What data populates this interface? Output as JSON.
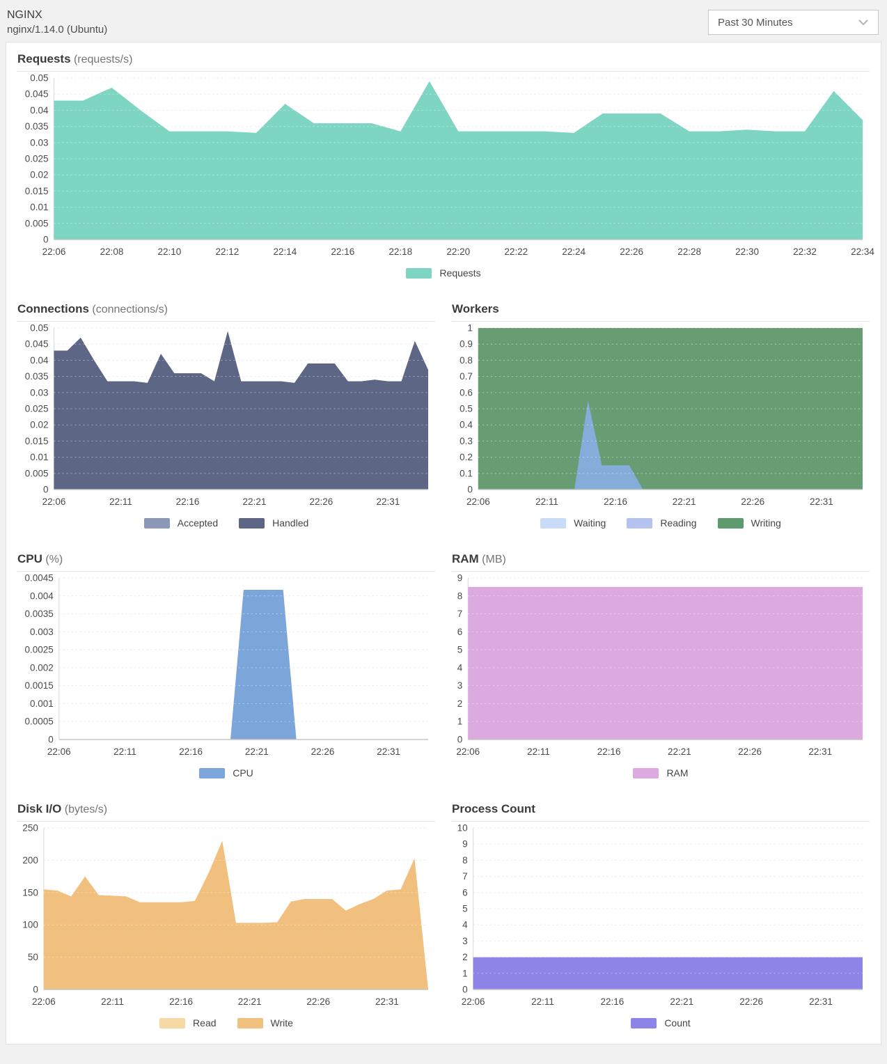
{
  "header": {
    "title": "NGINX",
    "subtitle": "nginx/1.14.0 (Ubuntu)",
    "time_range_selected": "Past 30 Minutes"
  },
  "chart_data": [
    {
      "id": "requests",
      "type": "area",
      "title": "Requests",
      "unit": "(requests/s)",
      "width": "full",
      "ymax": 0.05,
      "ytick_labels": [
        "0",
        "0.005",
        "0.01",
        "0.015",
        "0.02",
        "0.025",
        "0.03",
        "0.035",
        "0.04",
        "0.045",
        "0.05"
      ],
      "x_span_minutes": 28,
      "x_start": "22:06",
      "xticks": [
        {
          "label": "22:06",
          "min": 0
        },
        {
          "label": "22:08",
          "min": 2
        },
        {
          "label": "22:10",
          "min": 4
        },
        {
          "label": "22:12",
          "min": 6
        },
        {
          "label": "22:14",
          "min": 8
        },
        {
          "label": "22:16",
          "min": 10
        },
        {
          "label": "22:18",
          "min": 12
        },
        {
          "label": "22:20",
          "min": 14
        },
        {
          "label": "22:22",
          "min": 16
        },
        {
          "label": "22:24",
          "min": 18
        },
        {
          "label": "22:26",
          "min": 20
        },
        {
          "label": "22:28",
          "min": 22
        },
        {
          "label": "22:30",
          "min": 24
        },
        {
          "label": "22:32",
          "min": 26
        },
        {
          "label": "22:34",
          "min": 28
        }
      ],
      "series": [
        {
          "name": "Requests",
          "color": "#7ed5c2",
          "values": [
            0.043,
            0.043,
            0.047,
            0.04,
            0.0335,
            0.0335,
            0.0335,
            0.033,
            0.042,
            0.036,
            0.036,
            0.036,
            0.0335,
            0.049,
            0.0335,
            0.0335,
            0.0335,
            0.0335,
            0.033,
            0.039,
            0.039,
            0.039,
            0.0335,
            0.0335,
            0.034,
            0.0335,
            0.0335,
            0.046,
            0.037
          ]
        }
      ],
      "legend": [
        {
          "label": "Requests",
          "color": "#7ed5c2"
        }
      ]
    },
    {
      "id": "connections",
      "type": "area",
      "title": "Connections",
      "unit": "(connections/s)",
      "width": "half",
      "ymax": 0.05,
      "ytick_labels": [
        "0",
        "0.005",
        "0.01",
        "0.015",
        "0.02",
        "0.025",
        "0.03",
        "0.035",
        "0.04",
        "0.045",
        "0.05"
      ],
      "x_span_minutes": 28,
      "x_start": "22:06",
      "xticks": [
        {
          "label": "22:06",
          "min": 0
        },
        {
          "label": "22:11",
          "min": 5
        },
        {
          "label": "22:16",
          "min": 10
        },
        {
          "label": "22:21",
          "min": 15
        },
        {
          "label": "22:26",
          "min": 20
        },
        {
          "label": "22:31",
          "min": 25
        }
      ],
      "series": [
        {
          "name": "Accepted",
          "color": "#8c99b6",
          "values": [
            0.043,
            0.043,
            0.047,
            0.04,
            0.0335,
            0.0335,
            0.0335,
            0.033,
            0.042,
            0.036,
            0.036,
            0.036,
            0.0335,
            0.049,
            0.0335,
            0.0335,
            0.0335,
            0.0335,
            0.033,
            0.039,
            0.039,
            0.039,
            0.0335,
            0.0335,
            0.034,
            0.0335,
            0.0335,
            0.046,
            0.037
          ]
        },
        {
          "name": "Handled",
          "color": "#5d6684",
          "values": [
            0.043,
            0.043,
            0.047,
            0.04,
            0.0335,
            0.0335,
            0.0335,
            0.033,
            0.042,
            0.036,
            0.036,
            0.036,
            0.0335,
            0.049,
            0.0335,
            0.0335,
            0.0335,
            0.0335,
            0.033,
            0.039,
            0.039,
            0.039,
            0.0335,
            0.0335,
            0.034,
            0.0335,
            0.0335,
            0.046,
            0.037
          ]
        }
      ],
      "legend": [
        {
          "label": "Accepted",
          "color": "#8c99b6"
        },
        {
          "label": "Handled",
          "color": "#5d6684"
        }
      ]
    },
    {
      "id": "workers",
      "type": "area",
      "title": "Workers",
      "unit": "",
      "width": "half",
      "ymax": 1,
      "ytick_labels": [
        "0",
        "0.1",
        "0.2",
        "0.3",
        "0.4",
        "0.5",
        "0.6",
        "0.7",
        "0.8",
        "0.9",
        "1"
      ],
      "x_span_minutes": 28,
      "x_start": "22:06",
      "xticks": [
        {
          "label": "22:06",
          "min": 0
        },
        {
          "label": "22:11",
          "min": 5
        },
        {
          "label": "22:16",
          "min": 10
        },
        {
          "label": "22:21",
          "min": 15
        },
        {
          "label": "22:26",
          "min": 20
        },
        {
          "label": "22:31",
          "min": 25
        }
      ],
      "series": [
        {
          "name": "Writing",
          "color": "#689d74",
          "values": [
            1,
            1,
            1,
            1,
            1,
            1,
            1,
            1,
            1,
            1,
            1,
            1,
            1,
            1,
            1,
            1,
            1,
            1,
            1,
            1,
            1,
            1,
            1,
            1,
            1,
            1,
            1,
            1,
            1
          ]
        },
        {
          "name": "Waiting",
          "color": "#84add9",
          "values": [
            0,
            0,
            0,
            0,
            0,
            0,
            0,
            0,
            0.55,
            0.15,
            0.15,
            0.15,
            0,
            0,
            0,
            0,
            0,
            0,
            0,
            0,
            0,
            0,
            0,
            0,
            0,
            0,
            0,
            0,
            0
          ]
        },
        {
          "name": "Reading",
          "color": "#b4c2ef",
          "values": [
            0,
            0,
            0,
            0,
            0,
            0,
            0,
            0,
            0,
            0,
            0,
            0,
            0,
            0,
            0,
            0,
            0,
            0,
            0,
            0,
            0,
            0,
            0,
            0,
            0,
            0,
            0,
            0,
            0
          ]
        }
      ],
      "legend": [
        {
          "label": "Waiting",
          "color": "#c8dbf7"
        },
        {
          "label": "Reading",
          "color": "#b4c2ef"
        },
        {
          "label": "Writing",
          "color": "#5f9a6e"
        }
      ]
    },
    {
      "id": "cpu",
      "type": "area",
      "title": "CPU",
      "unit": "(%)",
      "width": "half",
      "ymax": 0.0045,
      "ytick_labels": [
        "0",
        "0.0005",
        "0.001",
        "0.0015",
        "0.002",
        "0.0025",
        "0.003",
        "0.0035",
        "0.004",
        "0.0045"
      ],
      "x_span_minutes": 28,
      "x_start": "22:06",
      "xticks": [
        {
          "label": "22:06",
          "min": 0
        },
        {
          "label": "22:11",
          "min": 5
        },
        {
          "label": "22:16",
          "min": 10
        },
        {
          "label": "22:21",
          "min": 15
        },
        {
          "label": "22:26",
          "min": 20
        },
        {
          "label": "22:31",
          "min": 25
        }
      ],
      "series": [
        {
          "name": "CPU",
          "color": "#7ca6da",
          "values": [
            0,
            0,
            0,
            0,
            0,
            0,
            0,
            0,
            0,
            0,
            0,
            0,
            0,
            0,
            0.00417,
            0.00417,
            0.00417,
            0.00417,
            0,
            0,
            0,
            0,
            0,
            0,
            0,
            0,
            0,
            0,
            0
          ]
        }
      ],
      "legend": [
        {
          "label": "CPU",
          "color": "#7ca6da"
        }
      ]
    },
    {
      "id": "ram",
      "type": "area",
      "title": "RAM",
      "unit": "(MB)",
      "width": "half",
      "ymax": 9,
      "ytick_labels": [
        "0",
        "1",
        "2",
        "3",
        "4",
        "5",
        "6",
        "7",
        "8",
        "9"
      ],
      "x_span_minutes": 28,
      "x_start": "22:06",
      "xticks": [
        {
          "label": "22:06",
          "min": 0
        },
        {
          "label": "22:11",
          "min": 5
        },
        {
          "label": "22:16",
          "min": 10
        },
        {
          "label": "22:21",
          "min": 15
        },
        {
          "label": "22:26",
          "min": 20
        },
        {
          "label": "22:31",
          "min": 25
        }
      ],
      "series": [
        {
          "name": "RAM",
          "color": "#dca9e0",
          "values": [
            8.5,
            8.5,
            8.5,
            8.5,
            8.5,
            8.5,
            8.5,
            8.5,
            8.5,
            8.5,
            8.5,
            8.5,
            8.5,
            8.5,
            8.5,
            8.5,
            8.5,
            8.5,
            8.5,
            8.5,
            8.5,
            8.5,
            8.5,
            8.5,
            8.5,
            8.5,
            8.5,
            8.5,
            8.5
          ]
        }
      ],
      "legend": [
        {
          "label": "RAM",
          "color": "#dca9e0"
        }
      ]
    },
    {
      "id": "disk-io",
      "type": "area",
      "title": "Disk I/O",
      "unit": "(bytes/s)",
      "width": "half",
      "ymax": 250,
      "ytick_labels": [
        "0",
        "50",
        "100",
        "150",
        "200",
        "250"
      ],
      "x_span_minutes": 28,
      "x_start": "22:06",
      "xticks": [
        {
          "label": "22:06",
          "min": 0
        },
        {
          "label": "22:11",
          "min": 5
        },
        {
          "label": "22:16",
          "min": 10
        },
        {
          "label": "22:21",
          "min": 15
        },
        {
          "label": "22:26",
          "min": 20
        },
        {
          "label": "22:31",
          "min": 25
        }
      ],
      "series": [
        {
          "name": "Read",
          "color": "#f6d9a4",
          "values": [
            155,
            153,
            144,
            175,
            146,
            145,
            144,
            135,
            135,
            135,
            135,
            137,
            180,
            230,
            103,
            103,
            103,
            104,
            136,
            140,
            140,
            140,
            122,
            132,
            140,
            153,
            155,
            203,
            0
          ]
        },
        {
          "name": "Write",
          "color": "#f2c07e",
          "values": [
            155,
            153,
            144,
            175,
            146,
            145,
            144,
            135,
            135,
            135,
            135,
            137,
            180,
            230,
            103,
            103,
            103,
            104,
            136,
            140,
            140,
            140,
            122,
            132,
            140,
            153,
            155,
            203,
            0
          ]
        }
      ],
      "legend": [
        {
          "label": "Read",
          "color": "#f6d9a4"
        },
        {
          "label": "Write",
          "color": "#f2c07e"
        }
      ]
    },
    {
      "id": "process-count",
      "type": "area",
      "title": "Process Count",
      "unit": "",
      "width": "half",
      "ymax": 10,
      "ytick_labels": [
        "0",
        "1",
        "2",
        "3",
        "4",
        "5",
        "6",
        "7",
        "8",
        "9",
        "10"
      ],
      "x_span_minutes": 28,
      "x_start": "22:06",
      "xticks": [
        {
          "label": "22:06",
          "min": 0
        },
        {
          "label": "22:11",
          "min": 5
        },
        {
          "label": "22:16",
          "min": 10
        },
        {
          "label": "22:21",
          "min": 15
        },
        {
          "label": "22:26",
          "min": 20
        },
        {
          "label": "22:31",
          "min": 25
        }
      ],
      "series": [
        {
          "name": "Count",
          "color": "#8e84e7",
          "values": [
            2,
            2,
            2,
            2,
            2,
            2,
            2,
            2,
            2,
            2,
            2,
            2,
            2,
            2,
            2,
            2,
            2,
            2,
            2,
            2,
            2,
            2,
            2,
            2,
            2,
            2,
            2,
            2,
            2
          ]
        }
      ],
      "legend": [
        {
          "label": "Count",
          "color": "#8e84e7"
        }
      ]
    }
  ]
}
